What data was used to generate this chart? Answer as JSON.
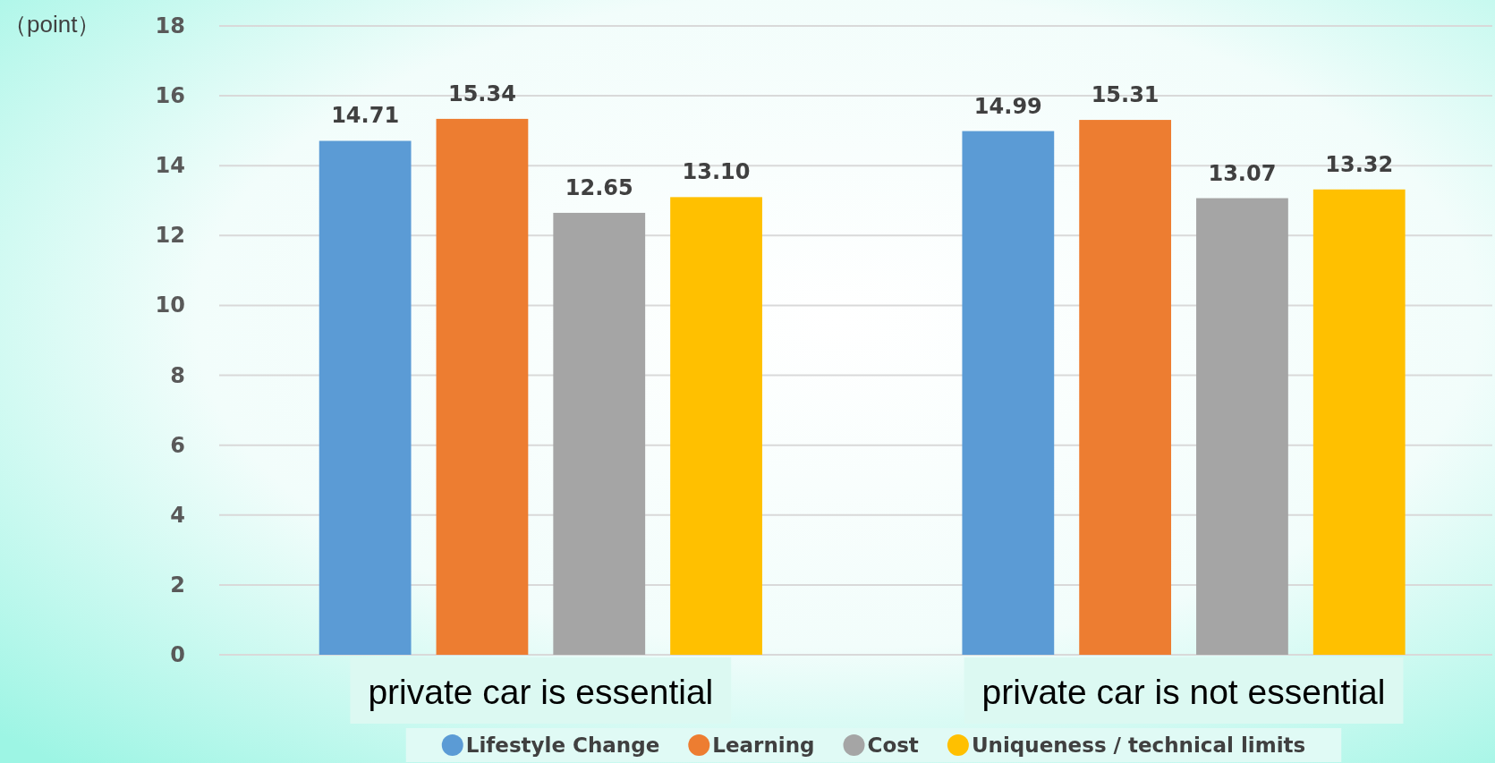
{
  "chart_data": {
    "type": "bar",
    "ylabel": "（point）",
    "categories": [
      "private car is essential",
      "private car is not essential"
    ],
    "series": [
      {
        "name": "Lifestyle Change",
        "color": "#5b9bd5",
        "values": [
          14.71,
          14.99
        ],
        "value_labels": [
          "14.71",
          "14.99"
        ]
      },
      {
        "name": "Learning",
        "color": "#ed7d31",
        "values": [
          15.34,
          15.31
        ],
        "value_labels": [
          "15.34",
          "15.31"
        ]
      },
      {
        "name": "Cost",
        "color": "#a5a5a5",
        "values": [
          12.65,
          13.07
        ],
        "value_labels": [
          "12.65",
          "13.07"
        ]
      },
      {
        "name": "Uniqueness / technical limits",
        "color": "#ffc000",
        "values": [
          13.1,
          13.32
        ],
        "value_labels": [
          "13.10",
          "13.32"
        ]
      }
    ],
    "ylim": [
      0,
      18
    ],
    "yticks": [
      0,
      2,
      4,
      6,
      8,
      10,
      12,
      14,
      16,
      18
    ],
    "grid": "y",
    "legend": "bottom"
  }
}
